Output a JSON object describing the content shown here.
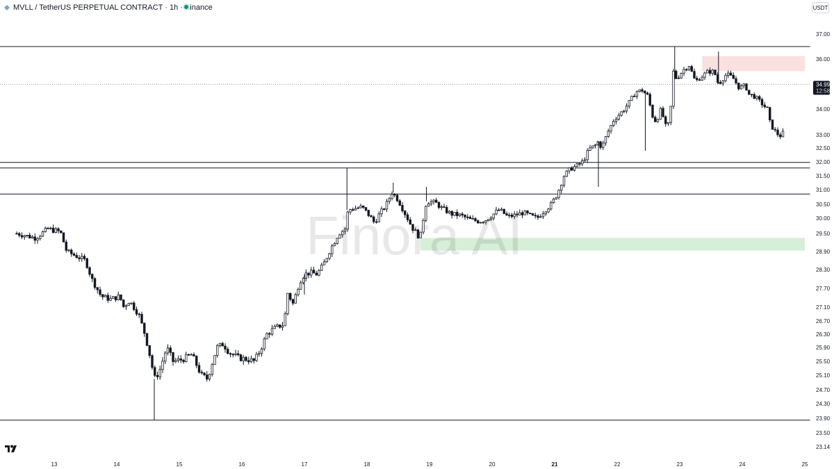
{
  "header": {
    "title": "MVLL / TetherUS PERPETUAL CONTRACT · 1h · Binance",
    "currency": "USDT",
    "live_color": "#089981"
  },
  "watermark": "Finora AI",
  "chart_data": {
    "type": "candlestick",
    "title": "MVLL / TetherUS PERPETUAL CONTRACT · 1h · Binance",
    "timeframe": "1h",
    "ylim": [
      22.94,
      37.42
    ],
    "y_ticks": [
      {
        "label": "37.00",
        "value": 37.0
      },
      {
        "label": "36.00",
        "value": 36.0
      },
      {
        "label": "35.00",
        "value": 35.0
      },
      {
        "label": "34.00",
        "value": 34.0
      },
      {
        "label": "33.00",
        "value": 33.0
      },
      {
        "label": "32.50",
        "value": 32.5
      },
      {
        "label": "32.00",
        "value": 32.0
      },
      {
        "label": "31.50",
        "value": 31.5
      },
      {
        "label": "31.00",
        "value": 31.0
      },
      {
        "label": "30.50",
        "value": 30.5
      },
      {
        "label": "30.00",
        "value": 30.0
      },
      {
        "label": "29.50",
        "value": 29.5
      },
      {
        "label": "28.90",
        "value": 28.9
      },
      {
        "label": "28.30",
        "value": 28.3
      },
      {
        "label": "27.70",
        "value": 27.7
      },
      {
        "label": "27.10",
        "value": 27.1
      },
      {
        "label": "26.70",
        "value": 26.7
      },
      {
        "label": "26.30",
        "value": 26.3
      },
      {
        "label": "25.90",
        "value": 25.9
      },
      {
        "label": "25.50",
        "value": 25.5
      },
      {
        "label": "25.10",
        "value": 25.1
      },
      {
        "label": "24.70",
        "value": 24.7
      },
      {
        "label": "24.30",
        "value": 24.3
      },
      {
        "label": "23.90",
        "value": 23.9
      },
      {
        "label": "23.50",
        "value": 23.5
      },
      {
        "label": "23.14",
        "value": 23.14
      }
    ],
    "x_ticks": [
      {
        "label": "13",
        "day": 13,
        "bold": false
      },
      {
        "label": "14",
        "day": 14,
        "bold": false
      },
      {
        "label": "15",
        "day": 15,
        "bold": false
      },
      {
        "label": "16",
        "day": 16,
        "bold": false
      },
      {
        "label": "17",
        "day": 17,
        "bold": false
      },
      {
        "label": "18",
        "day": 18,
        "bold": false
      },
      {
        "label": "19",
        "day": 19,
        "bold": false
      },
      {
        "label": "20",
        "day": 20,
        "bold": false
      },
      {
        "label": "21",
        "day": 21,
        "bold": true
      },
      {
        "label": "22",
        "day": 22,
        "bold": false
      },
      {
        "label": "23",
        "day": 23,
        "bold": false
      },
      {
        "label": "24",
        "day": 24,
        "bold": false
      },
      {
        "label": "25",
        "day": 25,
        "bold": false
      }
    ],
    "horizontal_levels": [
      36.5,
      31.98,
      31.78,
      30.85,
      23.85
    ],
    "last_price": {
      "price": "34.99",
      "countdown": "12:58",
      "value": 34.99
    },
    "zones": [
      {
        "name": "supply",
        "from_day": 23.36,
        "to_day": 25.0,
        "low": 35.52,
        "high": 36.12,
        "color": "#fbe0e0"
      },
      {
        "name": "demand",
        "from_day": 18.85,
        "to_day": 25.0,
        "low": 28.93,
        "high": 29.35,
        "color": "#d6efd9"
      }
    ],
    "ohlc_path": [
      [
        12.4,
        29.5
      ],
      [
        12.7,
        29.35
      ],
      [
        12.9,
        29.65
      ],
      [
        13.1,
        29.55
      ],
      [
        13.2,
        28.9
      ],
      [
        13.35,
        28.75
      ],
      [
        13.5,
        28.6
      ],
      [
        13.6,
        28.0
      ],
      [
        13.75,
        27.45
      ],
      [
        13.9,
        27.35
      ],
      [
        14.05,
        27.45
      ],
      [
        14.1,
        27.1
      ],
      [
        14.2,
        27.3
      ],
      [
        14.35,
        26.9
      ],
      [
        14.45,
        26.3
      ],
      [
        14.55,
        25.5
      ],
      [
        14.6,
        25.0
      ],
      [
        14.68,
        25.2
      ],
      [
        14.8,
        25.9
      ],
      [
        14.9,
        25.5
      ],
      [
        15.05,
        25.55
      ],
      [
        15.2,
        25.7
      ],
      [
        15.35,
        25.1
      ],
      [
        15.45,
        25.0
      ],
      [
        15.6,
        25.9
      ],
      [
        15.7,
        26.0
      ],
      [
        15.8,
        25.75
      ],
      [
        15.95,
        25.6
      ],
      [
        16.1,
        25.55
      ],
      [
        16.2,
        25.5
      ],
      [
        16.3,
        25.85
      ],
      [
        16.4,
        26.3
      ],
      [
        16.5,
        26.45
      ],
      [
        16.6,
        26.55
      ],
      [
        16.68,
        26.6
      ],
      [
        16.72,
        27.6
      ],
      [
        16.82,
        27.2
      ],
      [
        16.92,
        27.9
      ],
      [
        17.0,
        28.15
      ],
      [
        17.1,
        28.2
      ],
      [
        17.2,
        28.15
      ],
      [
        17.3,
        28.45
      ],
      [
        17.42,
        29.0
      ],
      [
        17.55,
        29.5
      ],
      [
        17.65,
        29.65
      ],
      [
        17.7,
        30.3
      ],
      [
        17.8,
        30.35
      ],
      [
        17.92,
        30.4
      ],
      [
        18.0,
        30.2
      ],
      [
        18.12,
        29.85
      ],
      [
        18.2,
        30.15
      ],
      [
        18.3,
        30.45
      ],
      [
        18.4,
        30.9
      ],
      [
        18.5,
        30.65
      ],
      [
        18.6,
        30.2
      ],
      [
        18.72,
        29.7
      ],
      [
        18.85,
        29.35
      ],
      [
        18.95,
        30.6
      ],
      [
        19.1,
        30.55
      ],
      [
        19.2,
        30.35
      ],
      [
        19.35,
        30.15
      ],
      [
        19.5,
        30.1
      ],
      [
        19.65,
        29.95
      ],
      [
        19.8,
        29.9
      ],
      [
        19.9,
        29.95
      ],
      [
        20.0,
        30.1
      ],
      [
        20.1,
        30.3
      ],
      [
        20.15,
        30.25
      ],
      [
        20.25,
        30.05
      ],
      [
        20.35,
        30.1
      ],
      [
        20.5,
        30.2
      ],
      [
        20.65,
        30.05
      ],
      [
        20.72,
        30.0
      ],
      [
        20.85,
        30.3
      ],
      [
        20.95,
        30.5
      ],
      [
        21.05,
        30.9
      ],
      [
        21.15,
        31.5
      ],
      [
        21.25,
        31.75
      ],
      [
        21.35,
        31.85
      ],
      [
        21.45,
        32.0
      ],
      [
        21.55,
        32.45
      ],
      [
        21.65,
        32.6
      ],
      [
        21.7,
        32.75
      ],
      [
        21.75,
        32.5
      ],
      [
        21.85,
        33.1
      ],
      [
        21.95,
        33.6
      ],
      [
        22.1,
        33.95
      ],
      [
        22.2,
        34.3
      ],
      [
        22.3,
        34.7
      ],
      [
        22.4,
        34.75
      ],
      [
        22.5,
        34.5
      ],
      [
        22.55,
        33.8
      ],
      [
        22.62,
        33.5
      ],
      [
        22.7,
        34.0
      ],
      [
        22.78,
        33.3
      ],
      [
        22.85,
        33.5
      ],
      [
        22.88,
        35.6
      ],
      [
        22.95,
        35.2
      ],
      [
        23.05,
        35.55
      ],
      [
        23.15,
        35.75
      ],
      [
        23.25,
        35.1
      ],
      [
        23.35,
        35.3
      ],
      [
        23.45,
        35.5
      ],
      [
        23.55,
        35.5
      ],
      [
        23.62,
        35.0
      ],
      [
        23.75,
        35.4
      ],
      [
        23.85,
        35.25
      ],
      [
        23.95,
        34.85
      ],
      [
        24.05,
        34.95
      ],
      [
        24.1,
        34.6
      ],
      [
        24.2,
        34.5
      ],
      [
        24.3,
        34.25
      ],
      [
        24.4,
        34.0
      ],
      [
        24.45,
        33.4
      ],
      [
        24.55,
        33.05
      ],
      [
        24.62,
        32.95
      ],
      [
        24.66,
        33.1
      ],
      [
        24.7,
        34.99
      ]
    ],
    "spikes": [
      {
        "day": 14.6,
        "low": 23.85
      },
      {
        "day": 17.68,
        "high": 31.78
      },
      {
        "day": 18.42,
        "high": 31.25
      },
      {
        "day": 18.95,
        "high": 31.1
      },
      {
        "day": 21.7,
        "low": 31.1
      },
      {
        "day": 22.45,
        "low": 32.4
      },
      {
        "day": 22.92,
        "high": 36.5
      },
      {
        "day": 23.62,
        "high": 36.3
      },
      {
        "day": 17.0,
        "low": 27.5
      }
    ]
  }
}
